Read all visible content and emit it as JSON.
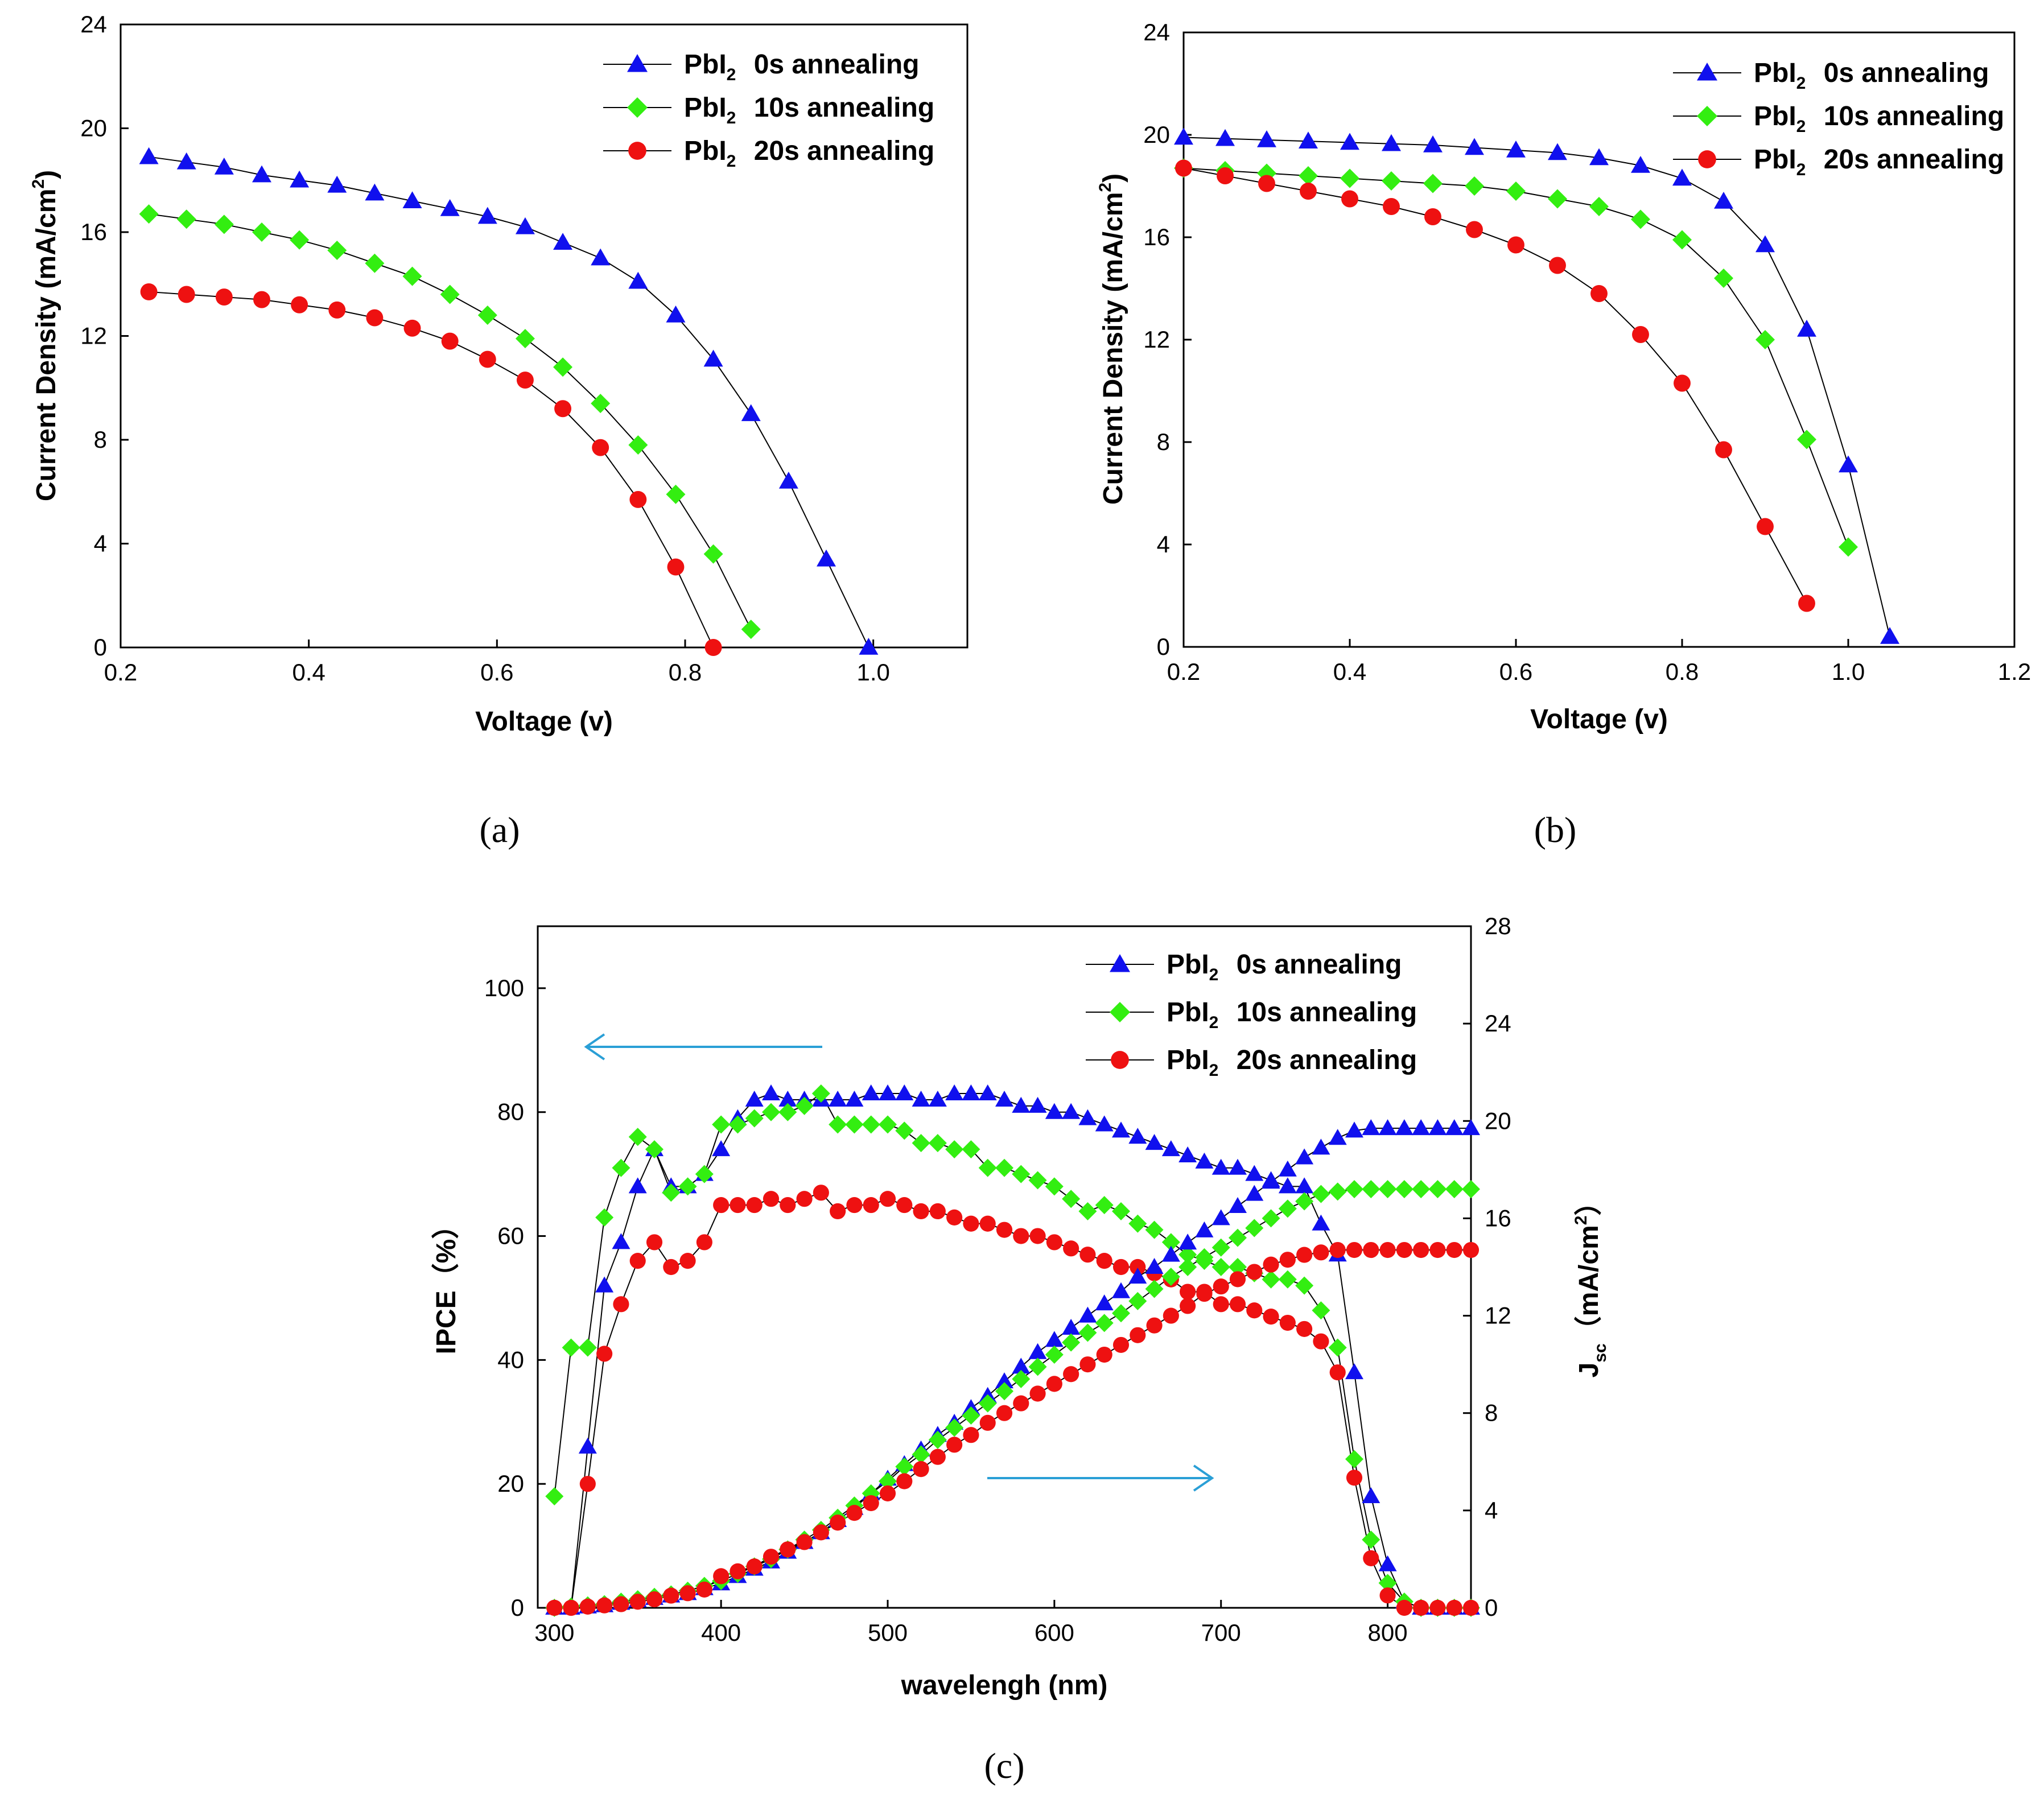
{
  "colors": {
    "blue": "#1010ee",
    "green": "#33ee11",
    "red": "#ee1111",
    "axis": "#000000",
    "arrow": "#2a9fd6"
  },
  "legend": [
    {
      "prefix": "PbI",
      "sub": "2",
      "label": "0s annealing",
      "marker": "triangle",
      "color": "#1010ee"
    },
    {
      "prefix": "PbI",
      "sub": "2",
      "label": "10s annealing",
      "marker": "diamond",
      "color": "#33ee11"
    },
    {
      "prefix": "PbI",
      "sub": "2",
      "label": "20s annealing",
      "marker": "circle",
      "color": "#ee1111"
    }
  ],
  "chart_data": [
    {
      "id": "a",
      "type": "line",
      "panel_label": "(a)",
      "xlabel": "Voltage (v)",
      "ylabel_main": "Current Density (mA/cm",
      "ylabel_sup": "2",
      "ylabel_end": ")",
      "xlim": [
        0.2,
        1.1
      ],
      "ylim": [
        0,
        24
      ],
      "xticks": [
        0.2,
        0.4,
        0.6,
        0.8,
        1.0
      ],
      "xtick_labels": [
        "0.2",
        "0.4",
        "0.6",
        "0.8",
        "1.0"
      ],
      "yticks": [
        0,
        4,
        8,
        12,
        16,
        20,
        24
      ],
      "ytick_labels": [
        "0",
        "4",
        "8",
        "12",
        "16",
        "20",
        "24"
      ],
      "series": [
        {
          "name": "PbI2 0s annealing",
          "marker": "triangle",
          "color": "#1010ee",
          "x": [
            0.23,
            0.27,
            0.31,
            0.35,
            0.39,
            0.43,
            0.47,
            0.51,
            0.55,
            0.59,
            0.63,
            0.67,
            0.71,
            0.75,
            0.79,
            0.83,
            0.87,
            0.91,
            0.95,
            0.995
          ],
          "y": [
            18.9,
            18.7,
            18.5,
            18.2,
            18.0,
            17.8,
            17.5,
            17.2,
            16.9,
            16.6,
            16.2,
            15.6,
            15.0,
            14.1,
            12.8,
            11.1,
            9.0,
            6.4,
            3.4,
            0.0
          ]
        },
        {
          "name": "PbI2 10s annealing",
          "marker": "diamond",
          "color": "#33ee11",
          "x": [
            0.23,
            0.27,
            0.31,
            0.35,
            0.39,
            0.43,
            0.47,
            0.51,
            0.55,
            0.59,
            0.63,
            0.67,
            0.71,
            0.75,
            0.79,
            0.83,
            0.87
          ],
          "y": [
            16.7,
            16.5,
            16.3,
            16.0,
            15.7,
            15.3,
            14.8,
            14.3,
            13.6,
            12.8,
            11.9,
            10.8,
            9.4,
            7.8,
            5.9,
            3.6,
            0.7
          ]
        },
        {
          "name": "PbI2 20s annealing",
          "marker": "circle",
          "color": "#ee1111",
          "x": [
            0.23,
            0.27,
            0.31,
            0.35,
            0.39,
            0.43,
            0.47,
            0.51,
            0.55,
            0.59,
            0.63,
            0.67,
            0.71,
            0.75,
            0.79,
            0.83
          ],
          "y": [
            13.7,
            13.6,
            13.5,
            13.4,
            13.2,
            13.0,
            12.7,
            12.3,
            11.8,
            11.1,
            10.3,
            9.2,
            7.7,
            5.7,
            3.1,
            0.0
          ]
        }
      ],
      "legend_position": "top-right"
    },
    {
      "id": "b",
      "type": "line",
      "panel_label": "(b)",
      "xlabel": "Voltage (v)",
      "ylabel_main": "Current Density (mA/cm",
      "ylabel_sup": "2",
      "ylabel_end": ")",
      "xlim": [
        0.2,
        1.2
      ],
      "ylim": [
        0,
        24
      ],
      "xticks": [
        0.2,
        0.4,
        0.6,
        0.8,
        1.0,
        1.2
      ],
      "xtick_labels": [
        "0.2",
        "0.4",
        "0.6",
        "0.8",
        "1.0",
        "1.2"
      ],
      "yticks": [
        0,
        4,
        8,
        12,
        16,
        20,
        24
      ],
      "ytick_labels": [
        "0",
        "4",
        "8",
        "12",
        "16",
        "20",
        "24"
      ],
      "series": [
        {
          "name": "PbI2 0s annealing",
          "marker": "triangle",
          "color": "#1010ee",
          "x": [
            0.2,
            0.25,
            0.3,
            0.35,
            0.4,
            0.45,
            0.5,
            0.55,
            0.6,
            0.65,
            0.7,
            0.75,
            0.8,
            0.85,
            0.9,
            0.95,
            1.0,
            1.05
          ],
          "y": [
            19.9,
            19.85,
            19.8,
            19.75,
            19.7,
            19.65,
            19.6,
            19.5,
            19.4,
            19.3,
            19.1,
            18.8,
            18.3,
            17.4,
            15.7,
            12.4,
            7.1,
            0.4
          ]
        },
        {
          "name": "PbI2 10s annealing",
          "marker": "diamond",
          "color": "#33ee11",
          "x": [
            0.2,
            0.25,
            0.3,
            0.35,
            0.4,
            0.45,
            0.5,
            0.55,
            0.6,
            0.65,
            0.7,
            0.75,
            0.8,
            0.85,
            0.9,
            0.95,
            1.0
          ],
          "y": [
            18.7,
            18.6,
            18.5,
            18.4,
            18.3,
            18.2,
            18.1,
            18.0,
            17.8,
            17.5,
            17.2,
            16.7,
            15.9,
            14.4,
            12.0,
            8.1,
            3.9
          ]
        },
        {
          "name": "PbI2 20s annealing",
          "marker": "circle",
          "color": "#ee1111",
          "x": [
            0.2,
            0.25,
            0.3,
            0.35,
            0.4,
            0.45,
            0.5,
            0.55,
            0.6,
            0.65,
            0.7,
            0.75,
            0.8,
            0.85,
            0.9,
            0.95
          ],
          "y": [
            18.7,
            18.4,
            18.1,
            17.8,
            17.5,
            17.2,
            16.8,
            16.3,
            15.7,
            14.9,
            13.8,
            12.2,
            10.3,
            7.7,
            4.7,
            1.7
          ]
        }
      ],
      "legend_position": "top-right"
    },
    {
      "id": "c",
      "type": "line",
      "panel_label": "(c)",
      "xlabel": "wavelengh (nm)",
      "ylabel_left": "IPCE（%）",
      "ylabel_right_main": "J",
      "ylabel_right_sub": "sc",
      "ylabel_right_rest": "（mA/cm",
      "ylabel_right_sup": "2",
      "ylabel_right_end": "）",
      "xlim": [
        290,
        850
      ],
      "ylim_left": [
        0,
        110
      ],
      "ylim_right": [
        0,
        28
      ],
      "xticks": [
        300,
        400,
        500,
        600,
        700,
        800
      ],
      "xtick_labels": [
        "300",
        "400",
        "500",
        "600",
        "700",
        "800"
      ],
      "yticks_left": [
        0,
        20,
        40,
        60,
        80,
        100
      ],
      "ytick_labels_left": [
        "0",
        "20",
        "40",
        "60",
        "80",
        "100"
      ],
      "yticks_right": [
        0,
        4,
        8,
        12,
        16,
        20,
        24,
        28
      ],
      "ytick_labels_right": [
        "0",
        "4",
        "8",
        "12",
        "16",
        "20",
        "24",
        "28"
      ],
      "wavelength": [
        300,
        310,
        320,
        330,
        340,
        350,
        360,
        370,
        380,
        390,
        400,
        410,
        420,
        430,
        440,
        450,
        460,
        470,
        480,
        490,
        500,
        510,
        520,
        530,
        540,
        550,
        560,
        570,
        580,
        590,
        600,
        610,
        620,
        630,
        640,
        650,
        660,
        670,
        680,
        690,
        700,
        710,
        720,
        730,
        740,
        750,
        760,
        770,
        780,
        790,
        800,
        810,
        820,
        830,
        840,
        850
      ],
      "ipce_series": [
        {
          "name": "PbI2 0s annealing",
          "axis": "left",
          "marker": "triangle",
          "color": "#1010ee",
          "y": [
            0,
            0,
            26,
            52,
            59,
            68,
            74,
            68,
            68,
            70,
            74,
            79,
            82,
            83,
            82,
            82,
            82,
            82,
            82,
            83,
            83,
            83,
            82,
            82,
            83,
            83,
            83,
            82,
            81,
            81,
            80,
            80,
            79,
            78,
            77,
            76,
            75,
            74,
            73,
            72,
            71,
            71,
            70,
            69,
            68,
            68,
            62,
            57,
            38,
            18,
            7,
            1,
            0,
            0,
            0,
            0
          ]
        },
        {
          "name": "PbI2 10s annealing",
          "axis": "left",
          "marker": "diamond",
          "color": "#33ee11",
          "y": [
            18,
            42,
            42,
            63,
            71,
            76,
            74,
            67,
            68,
            70,
            78,
            78,
            79,
            80,
            80,
            81,
            83,
            78,
            78,
            78,
            78,
            77,
            75,
            75,
            74,
            74,
            71,
            71,
            70,
            69,
            68,
            66,
            64,
            65,
            64,
            62,
            61,
            59,
            57,
            56,
            55,
            55,
            54,
            53,
            53,
            52,
            48,
            42,
            24,
            11,
            4,
            1,
            0,
            0,
            0,
            0
          ]
        },
        {
          "name": "PbI2 20s annealing",
          "axis": "left",
          "marker": "circle",
          "color": "#ee1111",
          "y": [
            0,
            0,
            20,
            41,
            49,
            56,
            59,
            55,
            56,
            59,
            65,
            65,
            65,
            66,
            65,
            66,
            67,
            64,
            65,
            65,
            66,
            65,
            64,
            64,
            63,
            62,
            62,
            61,
            60,
            60,
            59,
            58,
            57,
            56,
            55,
            55,
            54,
            53,
            51,
            51,
            49,
            49,
            48,
            47,
            46,
            45,
            43,
            38,
            21,
            8,
            2,
            0,
            0,
            0,
            0,
            0
          ]
        }
      ],
      "jsc_series": [
        {
          "name": "PbI2 0s annealing Jsc",
          "axis": "right",
          "marker": "triangle",
          "color": "#1010ee",
          "y": [
            0,
            0,
            0.05,
            0.1,
            0.2,
            0.3,
            0.4,
            0.5,
            0.6,
            0.8,
            1.0,
            1.3,
            1.6,
            1.9,
            2.3,
            2.7,
            3.1,
            3.6,
            4.1,
            4.7,
            5.3,
            5.9,
            6.5,
            7.1,
            7.6,
            8.2,
            8.7,
            9.3,
            9.9,
            10.5,
            11.0,
            11.5,
            12.0,
            12.5,
            13.0,
            13.6,
            14.0,
            14.5,
            15.0,
            15.5,
            16.0,
            16.5,
            17.0,
            17.5,
            18.0,
            18.5,
            18.9,
            19.3,
            19.6,
            19.7,
            19.7,
            19.7,
            19.7,
            19.7,
            19.7,
            19.7
          ]
        },
        {
          "name": "PbI2 10s annealing Jsc",
          "axis": "right",
          "marker": "diamond",
          "color": "#33ee11",
          "y": [
            0,
            0.05,
            0.1,
            0.15,
            0.25,
            0.35,
            0.45,
            0.55,
            0.7,
            0.9,
            1.1,
            1.4,
            1.7,
            2.0,
            2.4,
            2.8,
            3.2,
            3.7,
            4.2,
            4.7,
            5.2,
            5.8,
            6.3,
            6.9,
            7.4,
            7.9,
            8.4,
            8.9,
            9.4,
            9.9,
            10.4,
            10.9,
            11.3,
            11.7,
            12.1,
            12.6,
            13.1,
            13.6,
            14.0,
            14.4,
            14.8,
            15.2,
            15.6,
            16.0,
            16.4,
            16.7,
            17.0,
            17.1,
            17.2,
            17.2,
            17.2,
            17.2,
            17.2,
            17.2,
            17.2,
            17.2
          ]
        },
        {
          "name": "PbI2 20s annealing Jsc",
          "axis": "right",
          "marker": "circle",
          "color": "#ee1111",
          "y": [
            0,
            0,
            0.05,
            0.1,
            0.15,
            0.25,
            0.35,
            0.5,
            0.6,
            0.75,
            1.3,
            1.5,
            1.7,
            2.1,
            2.4,
            2.7,
            3.1,
            3.5,
            3.9,
            4.3,
            4.7,
            5.2,
            5.7,
            6.2,
            6.7,
            7.1,
            7.6,
            8.0,
            8.4,
            8.8,
            9.2,
            9.6,
            10.0,
            10.4,
            10.8,
            11.2,
            11.6,
            12.0,
            12.4,
            12.9,
            13.2,
            13.5,
            13.8,
            14.1,
            14.3,
            14.5,
            14.6,
            14.7,
            14.7,
            14.7,
            14.7,
            14.7,
            14.7,
            14.7,
            14.7,
            14.7
          ]
        }
      ],
      "legend_position": "top-right",
      "annotations": [
        "arrow pointing left toward IPCE axis",
        "arrow pointing right toward Jsc axis"
      ]
    }
  ]
}
